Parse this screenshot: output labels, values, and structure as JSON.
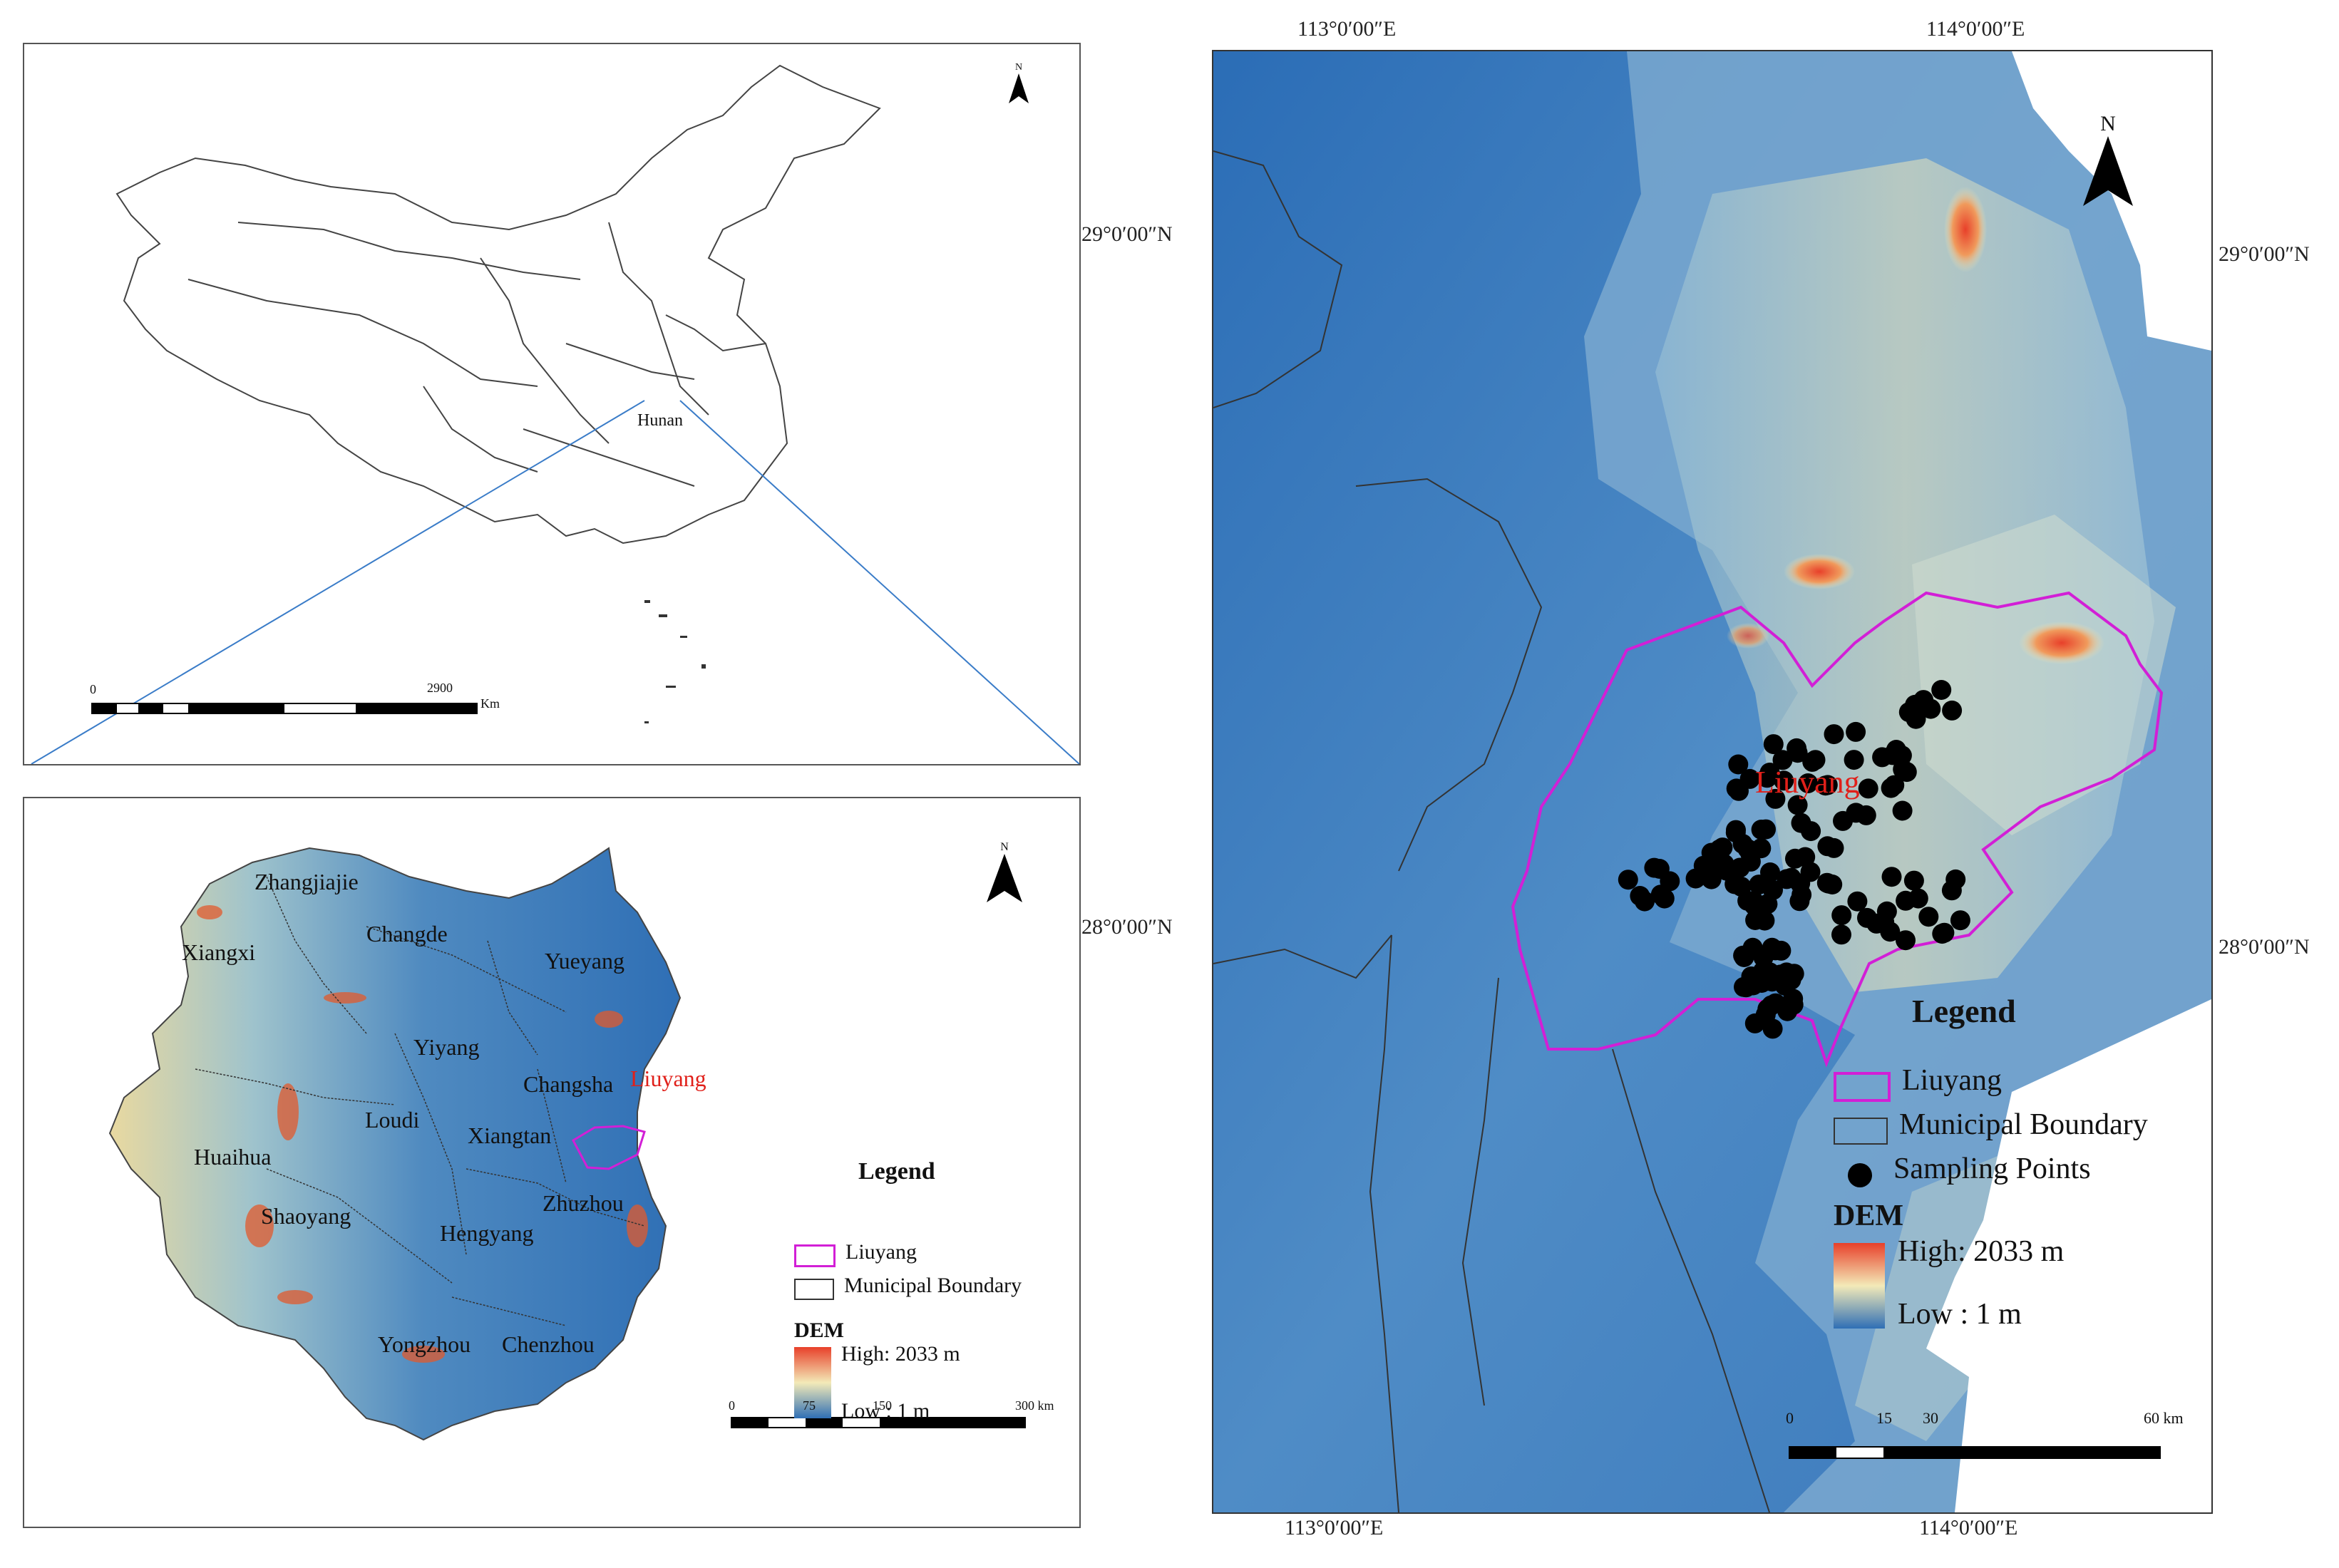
{
  "china_map": {
    "region_label": "Hunan",
    "north_label": "N",
    "scale": {
      "start": "0",
      "end": "2900",
      "unit": "Km"
    }
  },
  "hunan_map": {
    "north_label": "N",
    "cities": [
      "Zhangjiajie",
      "Xiangxi",
      "Changde",
      "Yueyang",
      "Yiyang",
      "Changsha",
      "Loudi",
      "Xiangtan",
      "Huaihua",
      "Shaoyang",
      "Zhuzhou",
      "Hengyang",
      "Yongzhou",
      "Chenzhou"
    ],
    "highlight_label": "Liuyang",
    "legend": {
      "title": "Legend",
      "items": [
        "Liuyang",
        "Municipal Boundary"
      ],
      "dem_title": "DEM",
      "dem_high": "High: 2033 m",
      "dem_low": "Low : 1 m"
    },
    "scale": {
      "ticks": [
        "0",
        "75",
        "150",
        "300 km"
      ]
    }
  },
  "study_map": {
    "north_label": "N",
    "lon_labels": [
      "113°0′00″E",
      "114°0′00″E"
    ],
    "lat_labels": [
      "29°0′00″N",
      "28°0′00″N"
    ],
    "right_lat_labels": [
      "29°0′00″N",
      "28°0′00″N"
    ],
    "area_label": "Liuyang",
    "legend": {
      "title": "Legend",
      "items": [
        "Liuyang",
        "Municipal Boundary",
        "Sampling Points"
      ],
      "dem_title": "DEM",
      "dem_high": "High: 2033 m",
      "dem_low": "Low : 1 m"
    },
    "scale": {
      "ticks": [
        "0",
        "15",
        "30",
        "60 km"
      ]
    },
    "sample_count": 150
  },
  "colors": {
    "liuyang_outline": "#d21fd6",
    "liuyang_text": "#e0201a",
    "dem_low": "#2f6fb5",
    "dem_mid": "#f3eab8",
    "dem_high": "#e8402a",
    "pointer_line": "#3a7cc8"
  }
}
